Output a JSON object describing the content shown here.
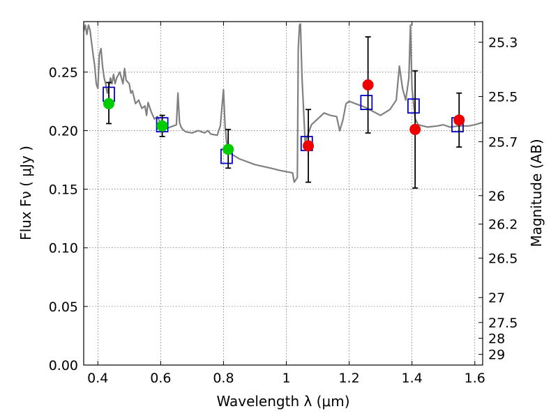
{
  "chart_data": {
    "type": "scatter",
    "xlabel": "Wavelength  λ (μm)",
    "ylabel": "Flux  Fν  ( μJy )",
    "ylabel_right": "Magnitude (AB)",
    "xlim": [
      0.355,
      1.625
    ],
    "ylim": [
      0.0,
      0.293
    ],
    "grid": true,
    "x_ticks": [
      0.4,
      0.6,
      0.8,
      1.0,
      1.2,
      1.4,
      1.6
    ],
    "x_tick_labels": [
      "0.4",
      "0.6",
      "0.8",
      "1",
      "1.2",
      "1.4",
      "1.6"
    ],
    "y_ticks": [
      0.0,
      0.05,
      0.1,
      0.15,
      0.2,
      0.25
    ],
    "y_tick_labels": [
      "0.00",
      "0.05",
      "0.10",
      "0.15",
      "0.20",
      "0.25"
    ],
    "mag_ticks": [
      25.3,
      25.5,
      25.7,
      26,
      26.2,
      26.5,
      27,
      27.5,
      28,
      29
    ],
    "mag_tick_labels": [
      "25.3",
      "25.5",
      "25.7",
      "26",
      "26.2",
      "26.5",
      "27",
      "27.5",
      "28",
      "29"
    ],
    "series": [
      {
        "marker": "line",
        "color": "#808080",
        "x": [
          0.355,
          0.36,
          0.365,
          0.37,
          0.375,
          0.38,
          0.385,
          0.39,
          0.395,
          0.4,
          0.405,
          0.41,
          0.415,
          0.42,
          0.425,
          0.43,
          0.435,
          0.44,
          0.445,
          0.45,
          0.455,
          0.46,
          0.47,
          0.48,
          0.485,
          0.49,
          0.5,
          0.505,
          0.51,
          0.52,
          0.53,
          0.54,
          0.55,
          0.555,
          0.56,
          0.57,
          0.58,
          0.59,
          0.6,
          0.62,
          0.64,
          0.65,
          0.655,
          0.66,
          0.665,
          0.67,
          0.68,
          0.7,
          0.72,
          0.74,
          0.75,
          0.76,
          0.78,
          0.79,
          0.8,
          0.805,
          0.81,
          0.815,
          0.82,
          0.85,
          0.9,
          0.95,
          0.98,
          1.0,
          1.02,
          1.025,
          1.035,
          1.038,
          1.042,
          1.045,
          1.05,
          1.06,
          1.08,
          1.1,
          1.12,
          1.14,
          1.16,
          1.17,
          1.18,
          1.19,
          1.2,
          1.22,
          1.25,
          1.3,
          1.33,
          1.35,
          1.36,
          1.37,
          1.38,
          1.39,
          1.395,
          1.4,
          1.41,
          1.42,
          1.45,
          1.48,
          1.5,
          1.52,
          1.55,
          1.58,
          1.6,
          1.625
        ],
        "y": [
          0.285,
          0.29,
          0.282,
          0.29,
          0.286,
          0.275,
          0.265,
          0.255,
          0.24,
          0.236,
          0.265,
          0.27,
          0.255,
          0.245,
          0.24,
          0.232,
          0.237,
          0.245,
          0.24,
          0.248,
          0.24,
          0.245,
          0.25,
          0.24,
          0.253,
          0.243,
          0.24,
          0.232,
          0.234,
          0.223,
          0.226,
          0.219,
          0.221,
          0.213,
          0.224,
          0.216,
          0.21,
          0.212,
          0.206,
          0.202,
          0.204,
          0.205,
          0.232,
          0.207,
          0.203,
          0.201,
          0.199,
          0.198,
          0.2,
          0.198,
          0.2,
          0.197,
          0.196,
          0.204,
          0.235,
          0.204,
          0.19,
          0.185,
          0.181,
          0.176,
          0.171,
          0.168,
          0.166,
          0.165,
          0.164,
          0.156,
          0.16,
          0.27,
          0.29,
          0.291,
          0.245,
          0.19,
          0.205,
          0.21,
          0.215,
          0.213,
          0.212,
          0.2,
          0.209,
          0.223,
          0.225,
          0.223,
          0.22,
          0.213,
          0.218,
          0.226,
          0.255,
          0.236,
          0.226,
          0.245,
          0.29,
          0.236,
          0.21,
          0.205,
          0.203,
          0.204,
          0.205,
          0.203,
          0.204,
          0.204,
          0.205,
          0.207
        ]
      },
      {
        "marker": "open-square",
        "color": "#0000cc",
        "x": [
          0.435,
          0.605,
          0.81,
          1.065,
          1.255,
          1.405,
          1.545
        ],
        "y": [
          0.231,
          0.205,
          0.178,
          0.189,
          0.224,
          0.221,
          0.205
        ]
      },
      {
        "marker": "circle",
        "color": "#00cc00",
        "x": [
          0.435,
          0.605,
          0.815
        ],
        "y": [
          0.223,
          0.204,
          0.184
        ],
        "yerr_low": [
          0.017,
          0.009,
          0.016
        ],
        "yerr_high": [
          0.018,
          0.009,
          0.017
        ]
      },
      {
        "marker": "circle",
        "color": "#ee0000",
        "x": [
          1.07,
          1.26,
          1.41,
          1.55
        ],
        "y": [
          0.187,
          0.239,
          0.201,
          0.209
        ],
        "yerr_low": [
          0.031,
          0.041,
          0.05,
          0.023
        ],
        "yerr_high": [
          0.031,
          0.041,
          0.05,
          0.023
        ]
      }
    ]
  }
}
